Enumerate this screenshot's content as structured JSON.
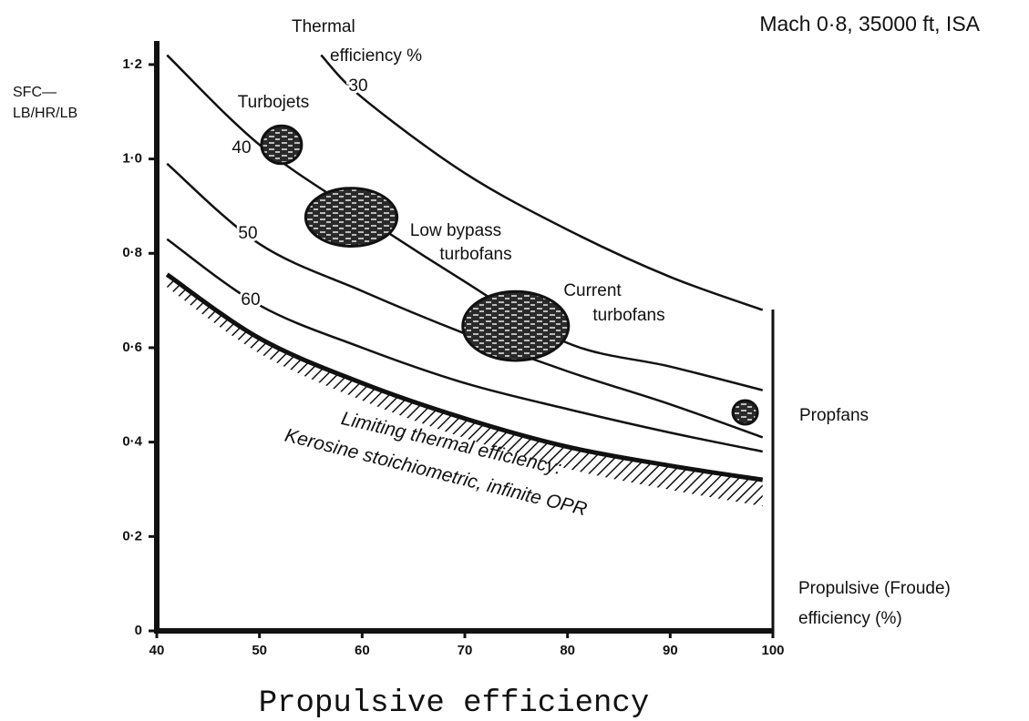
{
  "chart_data": {
    "type": "line",
    "title": "Mach 0·8, 35000 ft, ISA",
    "y_label_lines": [
      "SFC—",
      "LB/HR/LB"
    ],
    "xlabel": "Propulsive efficiency",
    "x_axis_note_lines": [
      "Propulsive (Froude)",
      "efficiency (%)"
    ],
    "series_group_label_lines": [
      "Thermal",
      "efficiency %"
    ],
    "limit_note": "Kerosine stoichiometric, infinite OPR",
    "xlim": [
      40,
      100
    ],
    "ylim": [
      0,
      1.25
    ],
    "xticks": [
      40,
      50,
      60,
      70,
      80,
      90,
      100
    ],
    "yticks": [
      {
        "value": 0,
        "label": "0"
      },
      {
        "value": 0.2,
        "label": "0·2"
      },
      {
        "value": 0.4,
        "label": "0·4"
      },
      {
        "value": 0.6,
        "label": "0·6"
      },
      {
        "value": 0.8,
        "label": "0·8"
      },
      {
        "value": 1.0,
        "label": "1·0"
      },
      {
        "value": 1.2,
        "label": "1·2"
      }
    ],
    "series": [
      {
        "name": "30",
        "color": "#111",
        "x": [
          56,
          60,
          70,
          80,
          90,
          99
        ],
        "values": [
          1.22,
          1.13,
          0.97,
          0.85,
          0.75,
          0.68
        ]
      },
      {
        "name": "40",
        "color": "#111",
        "x": [
          41,
          50,
          60,
          70,
          80,
          90,
          99
        ],
        "values": [
          1.22,
          1.03,
          0.88,
          0.74,
          0.61,
          0.56,
          0.51
        ]
      },
      {
        "name": "50",
        "color": "#111",
        "x": [
          41,
          50,
          60,
          70,
          80,
          90,
          99
        ],
        "values": [
          0.99,
          0.82,
          0.72,
          0.63,
          0.55,
          0.48,
          0.41
        ]
      },
      {
        "name": "60",
        "color": "#111",
        "x": [
          41,
          50,
          60,
          70,
          80,
          90,
          99
        ],
        "values": [
          0.83,
          0.69,
          0.6,
          0.525,
          0.47,
          0.42,
          0.38
        ]
      },
      {
        "name": "Limiting thermal efficiency:",
        "color": "#111",
        "x": [
          41,
          50,
          60,
          70,
          80,
          90,
          99
        ],
        "values": [
          0.755,
          0.62,
          0.525,
          0.45,
          0.39,
          0.35,
          0.32
        ]
      }
    ],
    "regions": [
      {
        "name_lines": [
          "Turbojets"
        ],
        "x": [
          50.2,
          54.1
        ],
        "y": [
          0.99,
          1.07
        ]
      },
      {
        "name_lines": [
          "Low bypass",
          "turbofans"
        ],
        "x": [
          54.5,
          63.4
        ],
        "y": [
          0.815,
          0.938
        ]
      },
      {
        "name_lines": [
          "Current",
          "turbofans"
        ],
        "x": [
          69.8,
          80.1
        ],
        "y": [
          0.573,
          0.719
        ]
      },
      {
        "name_lines": [
          "Propfans"
        ],
        "x": [
          96.1,
          98.5
        ],
        "y": [
          0.438,
          0.488
        ]
      }
    ]
  }
}
